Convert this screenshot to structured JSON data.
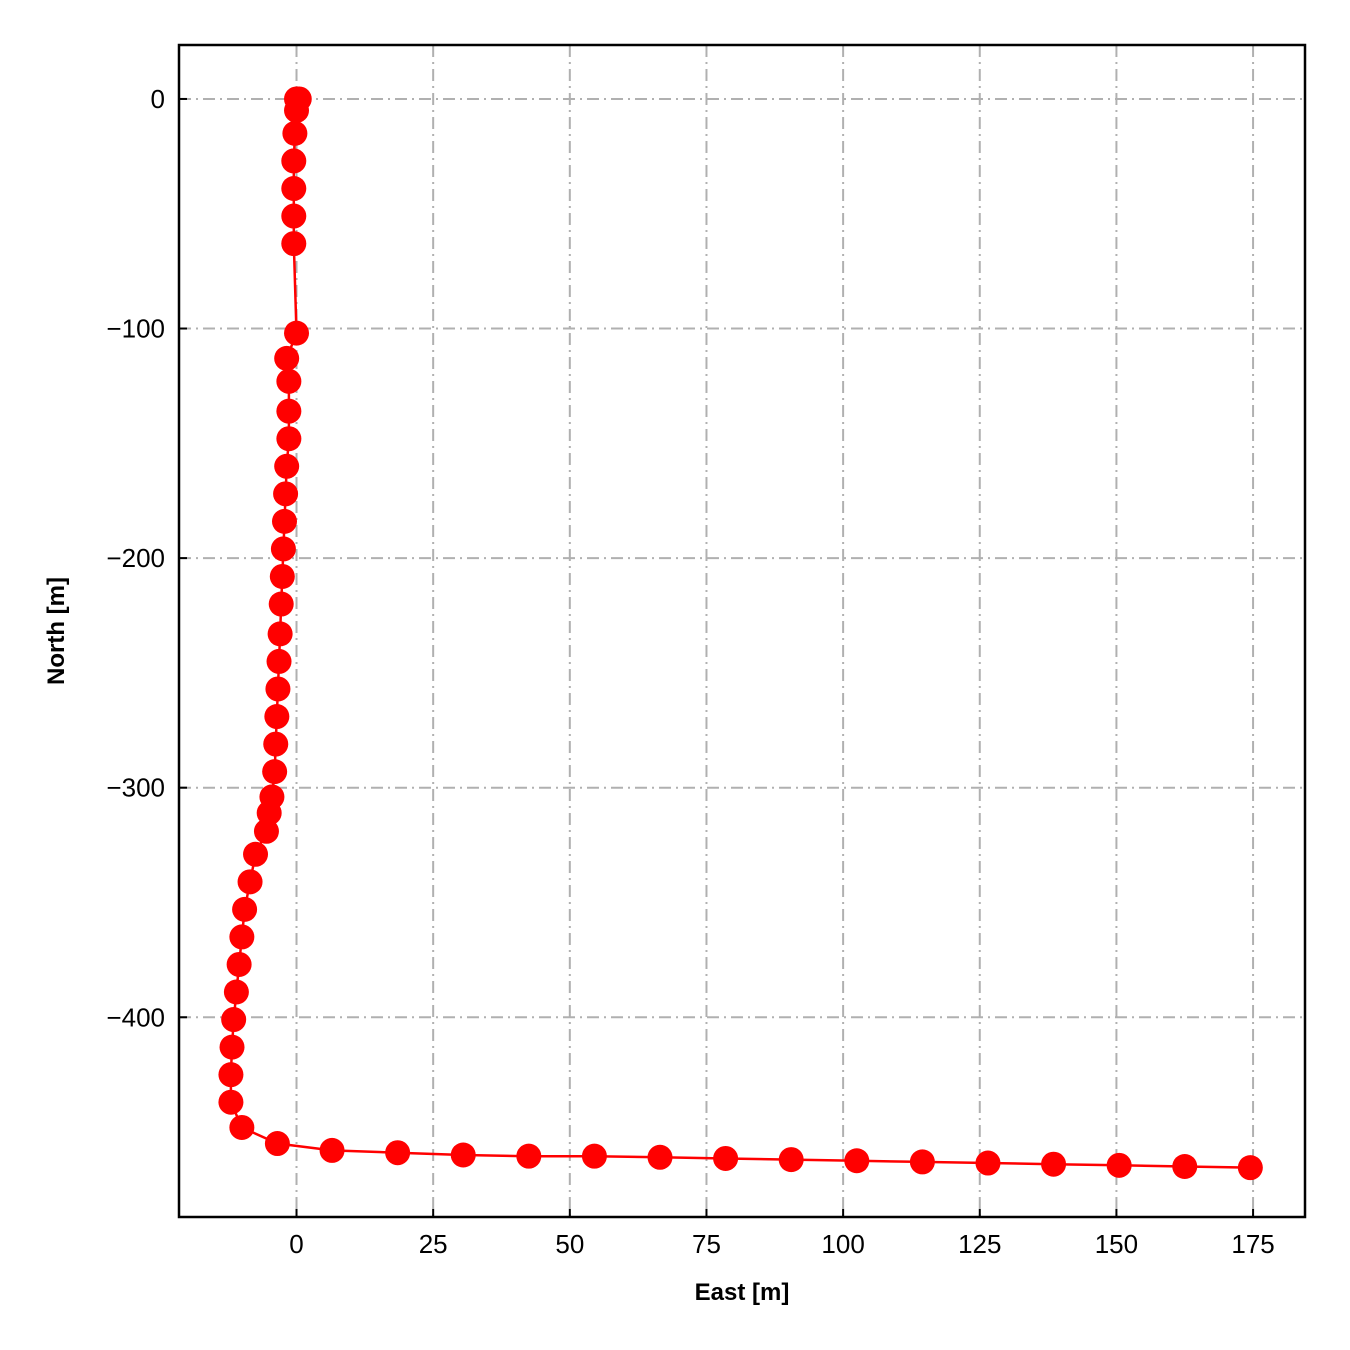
{
  "chart_data": {
    "type": "line",
    "title": "",
    "xlabel": "East [m]",
    "ylabel": "North [m]",
    "xlim": [
      -21.5,
      184.5
    ],
    "ylim": [
      -487,
      23.5
    ],
    "xticks": [
      0,
      25,
      50,
      75,
      100,
      125,
      150,
      175
    ],
    "yticks": [
      0,
      -100,
      -200,
      -300,
      -400
    ],
    "xtick_labels": [
      "0",
      "25",
      "50",
      "75",
      "100",
      "125",
      "150",
      "175"
    ],
    "ytick_labels": [
      "0",
      "−100",
      "−200",
      "−300",
      "−400"
    ],
    "grid": true,
    "series": [
      {
        "color": "#ff0000",
        "marker": "circle",
        "x": [
          0.5,
          0,
          0,
          -0.3,
          -0.5,
          -0.5,
          -0.5,
          -0.5,
          0,
          -1.8,
          -1.4,
          -1.4,
          -1.4,
          -1.8,
          -2.0,
          -2.2,
          -2.4,
          -2.6,
          -2.8,
          -3.0,
          -3.2,
          -3.4,
          -3.6,
          -3.8,
          -4.0,
          -4.5,
          -5.0,
          -5.5,
          -7.5,
          -8.5,
          -9.5,
          -10.0,
          -10.5,
          -11.0,
          -11.5,
          -11.8,
          -12.0,
          -12.0,
          -10.0,
          -3.5,
          6.5,
          18.5,
          30.5,
          42.5,
          54.5,
          66.5,
          78.5,
          90.5,
          102.5,
          114.5,
          126.5,
          138.5,
          150.5,
          162.5,
          174.5
        ],
        "y": [
          0,
          0,
          -5,
          -15,
          -27,
          -39,
          -51,
          -63,
          -102,
          -113,
          -123,
          -136,
          -148,
          -160,
          -172,
          -184,
          -196,
          -208,
          -220,
          -233,
          -245,
          -257,
          -269,
          -281,
          -293,
          -304,
          -311,
          -319,
          -329,
          -341,
          -353,
          -365,
          -377,
          -389,
          -401,
          -413,
          -425,
          -437,
          -448,
          -455,
          -458,
          -459,
          -460,
          -460.5,
          -460.5,
          -461,
          -461.5,
          -462,
          -462.5,
          -463,
          -463.5,
          -464,
          -464.5,
          -465,
          -465.5
        ]
      }
    ]
  }
}
